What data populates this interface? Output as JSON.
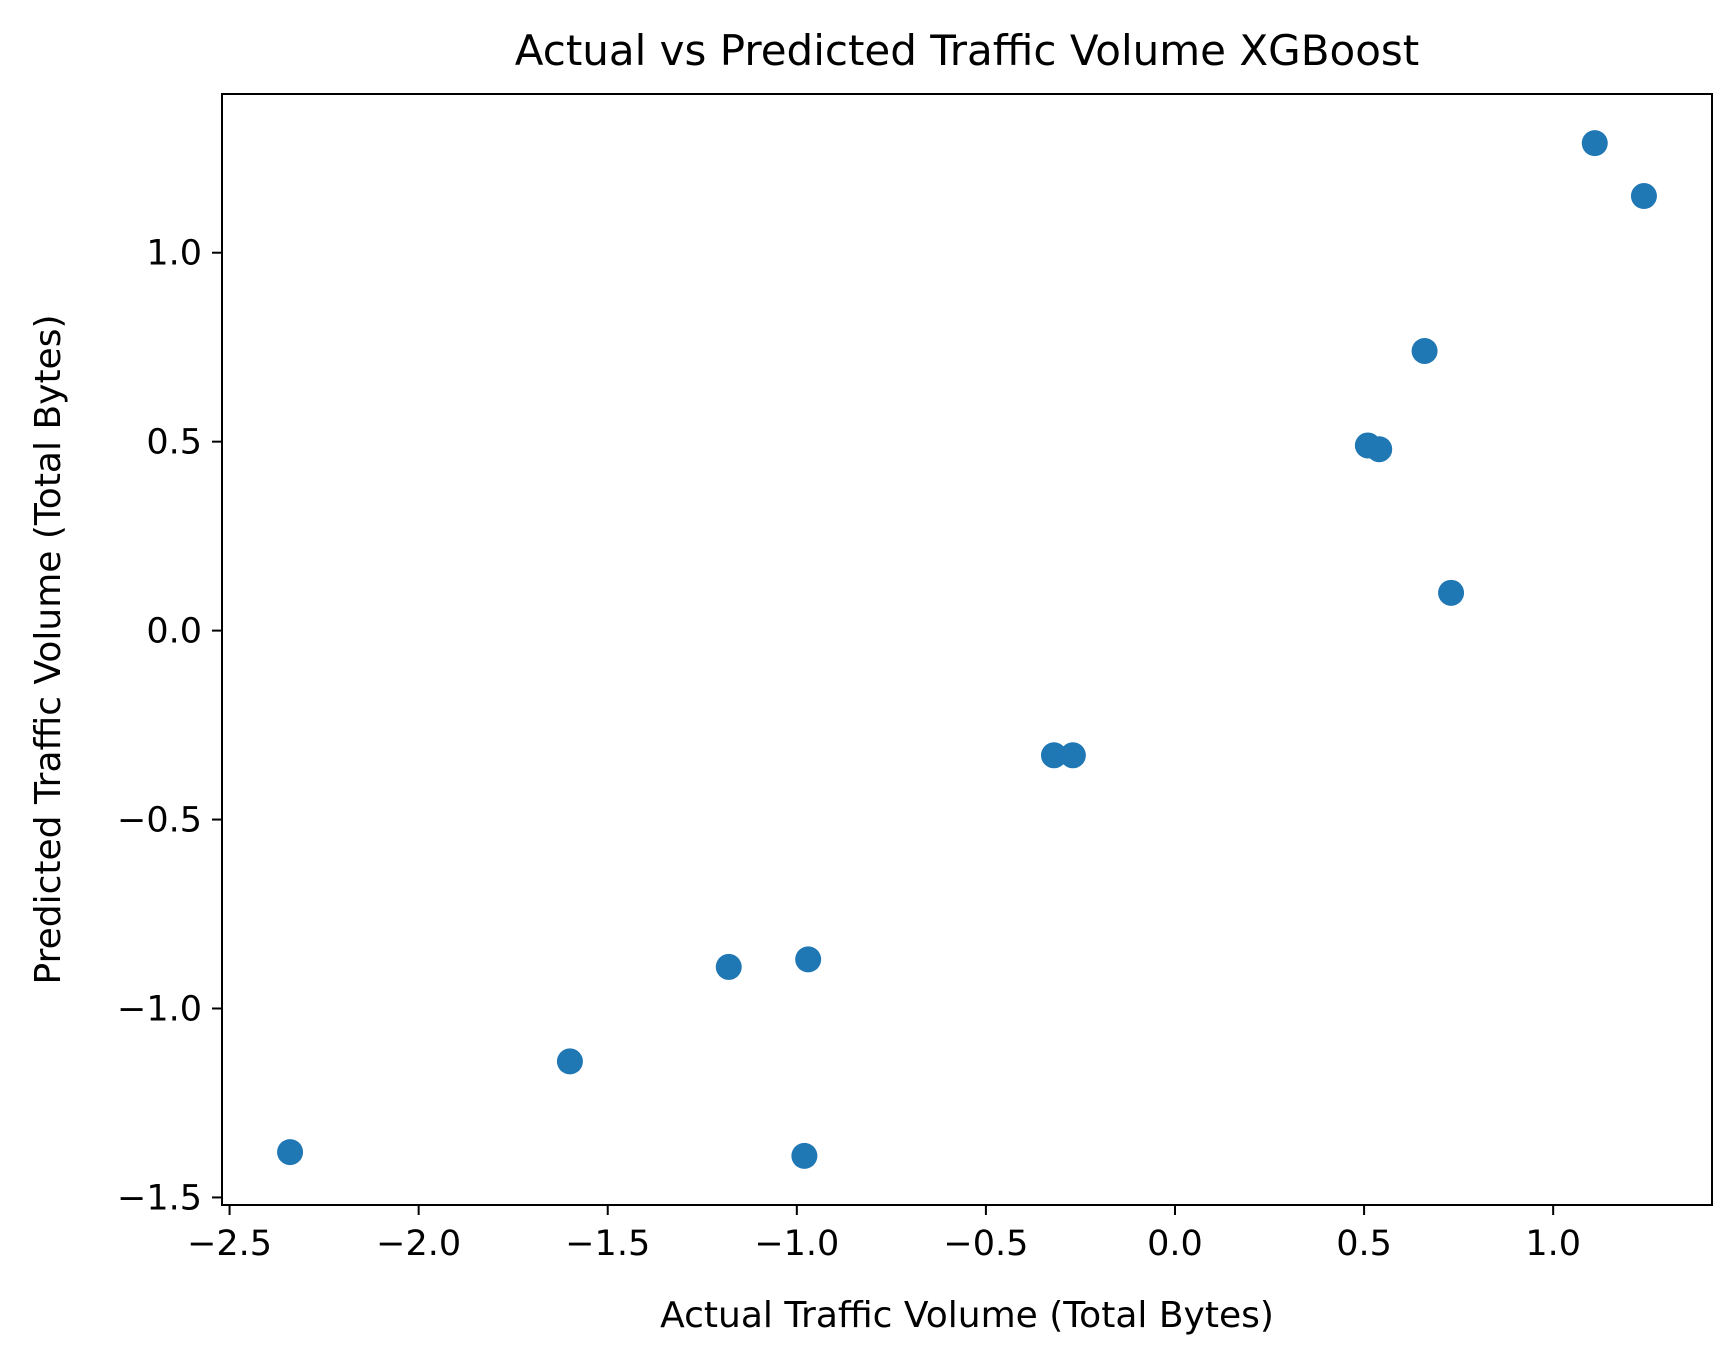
{
  "chart_data": {
    "type": "scatter",
    "title": "Actual vs Predicted Traffic Volume XGBoost",
    "xlabel": "Actual Traffic Volume (Total Bytes)",
    "ylabel": "Predicted Traffic Volume (Total Bytes)",
    "xlim": [
      -2.52,
      1.42
    ],
    "ylim": [
      -1.52,
      1.42
    ],
    "x_ticks": [
      -2.5,
      -2.0,
      -1.5,
      -1.0,
      -0.5,
      0.0,
      0.5,
      1.0
    ],
    "x_tick_labels": [
      "−2.5",
      "−2.0",
      "−1.5",
      "−1.0",
      "−0.5",
      "0.0",
      "0.5",
      "1.0"
    ],
    "y_ticks": [
      -1.5,
      -1.0,
      -0.5,
      0.0,
      0.5,
      1.0
    ],
    "y_tick_labels": [
      "−1.5",
      "−1.0",
      "−0.5",
      "0.0",
      "0.5",
      "1.0"
    ],
    "grid": false,
    "marker_color": "#1f77b4",
    "points": [
      {
        "x": -2.34,
        "y": -1.38
      },
      {
        "x": -1.6,
        "y": -1.14
      },
      {
        "x": -1.18,
        "y": -0.89
      },
      {
        "x": -0.97,
        "y": -0.87
      },
      {
        "x": -0.98,
        "y": -1.39
      },
      {
        "x": -0.32,
        "y": -0.33
      },
      {
        "x": -0.27,
        "y": -0.33
      },
      {
        "x": 0.51,
        "y": 0.49
      },
      {
        "x": 0.54,
        "y": 0.48
      },
      {
        "x": 0.66,
        "y": 0.74
      },
      {
        "x": 0.73,
        "y": 0.1
      },
      {
        "x": 1.11,
        "y": 1.29
      },
      {
        "x": 1.24,
        "y": 1.15
      }
    ]
  }
}
